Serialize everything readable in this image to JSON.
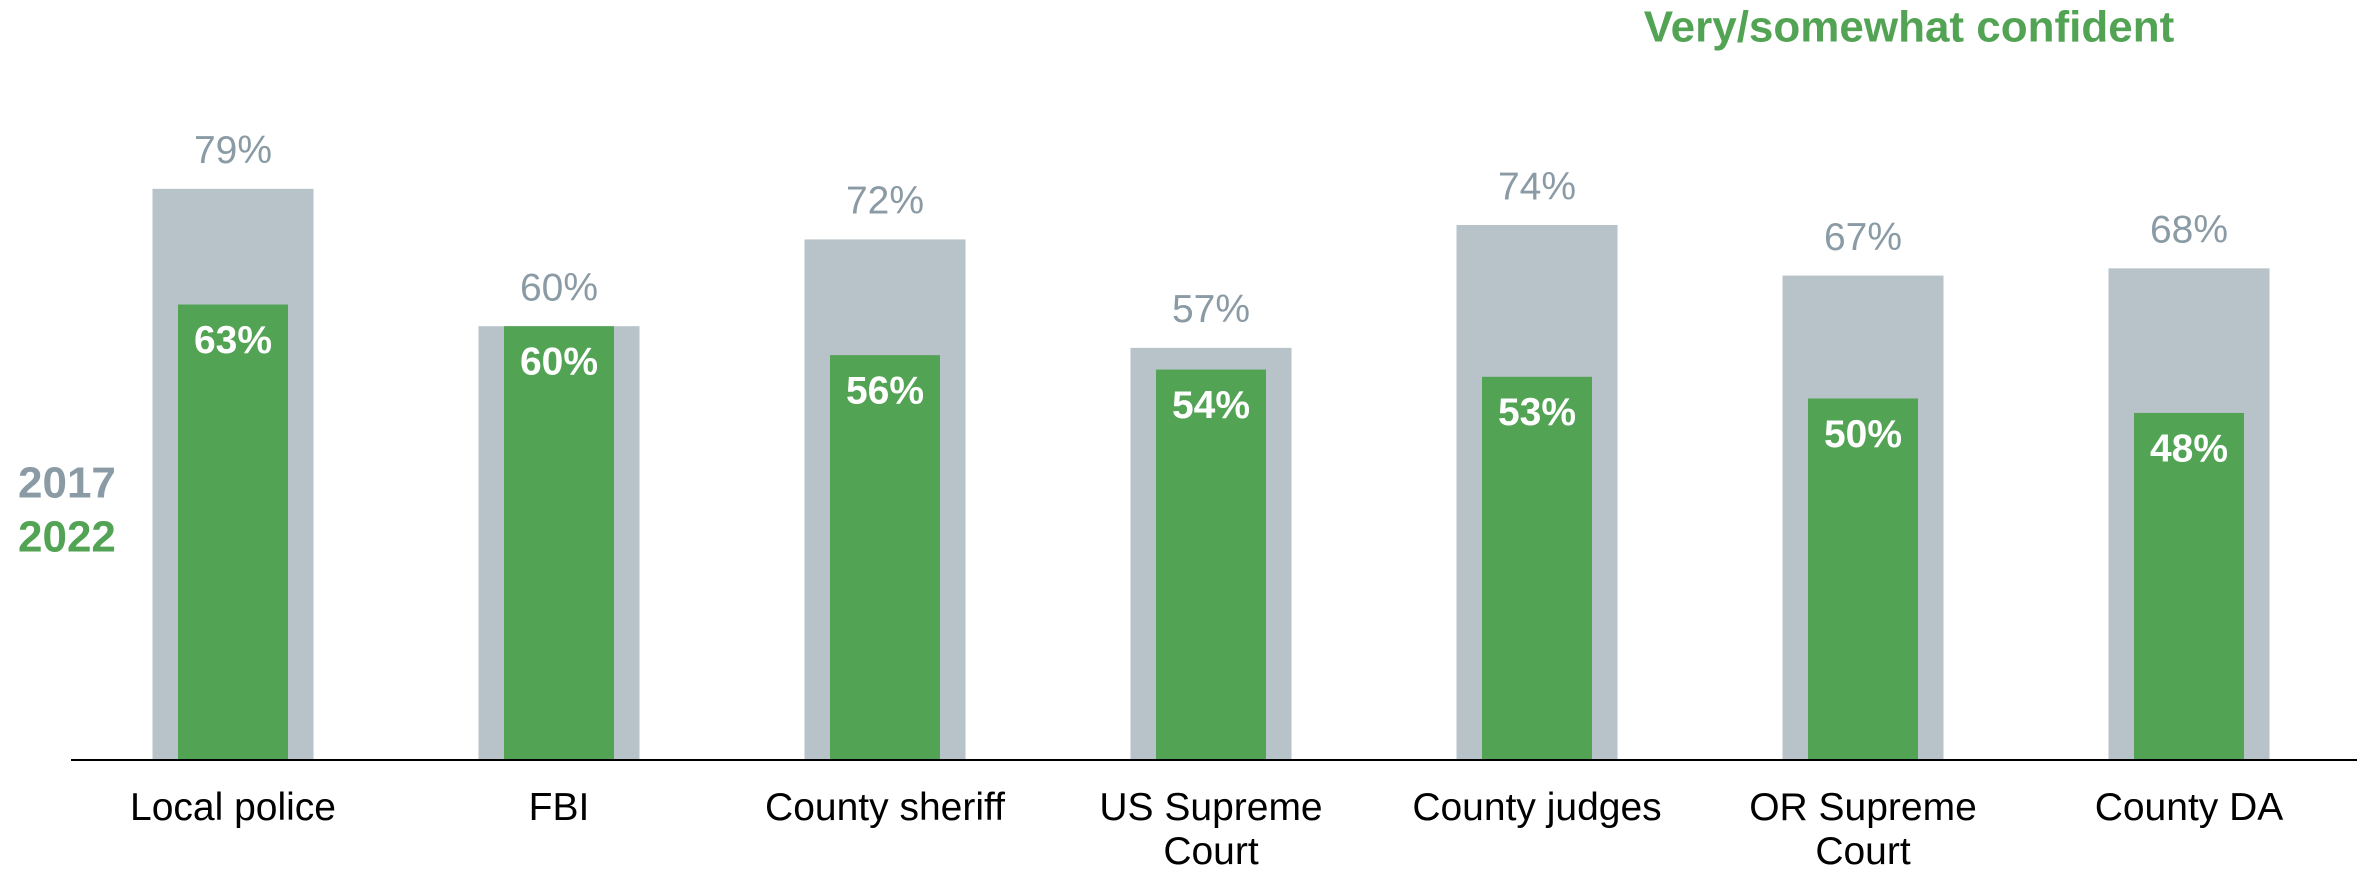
{
  "chart_data": {
    "type": "bar",
    "title": "Very/somewhat confident",
    "categories": [
      "Local police",
      "FBI",
      "County sheriff",
      "US Supreme Court",
      "County judges",
      "OR Supreme Court",
      "County DA"
    ],
    "series": [
      {
        "name": "2017",
        "color": "#b7c2c9",
        "label_color": "#8a9ba5",
        "values": [
          79,
          60,
          72,
          57,
          74,
          67,
          68
        ],
        "value_labels": [
          "79%",
          "60%",
          "72%",
          "57%",
          "74%",
          "67%",
          "68%"
        ]
      },
      {
        "name": "2022",
        "color": "#52a354",
        "label_color": "#ffffff",
        "values": [
          63,
          60,
          56,
          54,
          53,
          50,
          48
        ],
        "value_labels": [
          "63%",
          "60%",
          "56%",
          "54%",
          "53%",
          "50%",
          "48%"
        ]
      }
    ],
    "ylim": [
      0,
      100
    ],
    "overlap": true
  }
}
